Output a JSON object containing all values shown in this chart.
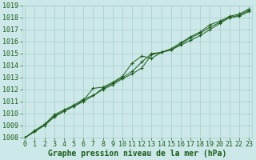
{
  "x": [
    0,
    1,
    2,
    3,
    4,
    5,
    6,
    7,
    8,
    9,
    10,
    11,
    12,
    13,
    14,
    15,
    16,
    17,
    18,
    19,
    20,
    21,
    22,
    23
  ],
  "series1": [
    1008.0,
    1008.5,
    1009.0,
    1009.7,
    1010.2,
    1010.6,
    1011.0,
    1011.5,
    1012.0,
    1012.4,
    1012.9,
    1013.3,
    1013.8,
    1014.9,
    1015.1,
    1015.3,
    1015.7,
    1016.1,
    1016.5,
    1017.0,
    1017.5,
    1018.0,
    1018.1,
    1018.5
  ],
  "series2": [
    1008.0,
    1008.5,
    1009.1,
    1009.8,
    1010.2,
    1010.6,
    1011.1,
    1012.1,
    1012.2,
    1012.6,
    1013.1,
    1014.2,
    1014.8,
    1014.6,
    1015.1,
    1015.3,
    1015.8,
    1016.3,
    1016.7,
    1017.2,
    1017.6,
    1018.0,
    1018.2,
    1018.6
  ],
  "series3": [
    1008.0,
    1008.6,
    1009.1,
    1009.9,
    1010.3,
    1010.7,
    1011.2,
    1011.5,
    1012.1,
    1012.5,
    1013.0,
    1013.5,
    1014.3,
    1015.0,
    1015.1,
    1015.4,
    1015.9,
    1016.4,
    1016.8,
    1017.4,
    1017.7,
    1018.1,
    1018.3,
    1018.7
  ],
  "ylim": [
    1008,
    1019
  ],
  "xlim": [
    -0.3,
    23.3
  ],
  "yticks": [
    1008,
    1009,
    1010,
    1011,
    1012,
    1013,
    1014,
    1015,
    1016,
    1017,
    1018,
    1019
  ],
  "xticks": [
    0,
    1,
    2,
    3,
    4,
    5,
    6,
    7,
    8,
    9,
    10,
    11,
    12,
    13,
    14,
    15,
    16,
    17,
    18,
    19,
    20,
    21,
    22,
    23
  ],
  "line_color": "#1a5c1a",
  "marker": "+",
  "bg_color": "#cce8e8",
  "grid_color": "#aacccc",
  "xlabel": "Graphe pression niveau de la mer (hPa)",
  "xlabel_color": "#1a5c1a",
  "tick_color": "#1a5c1a",
  "fontsize_xlabel": 7.0,
  "fontsize_ticks": 6.0,
  "markersize": 3.0,
  "linewidth": 0.7,
  "markeredgewidth": 0.8
}
